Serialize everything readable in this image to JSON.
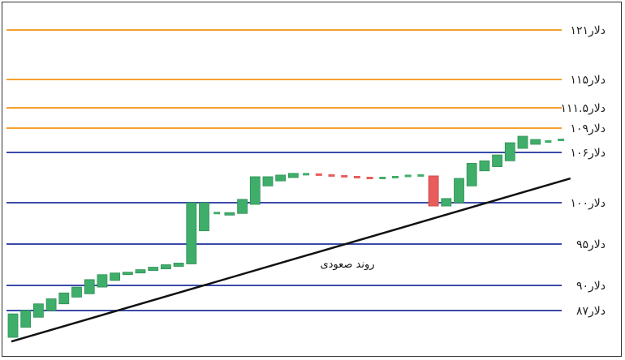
{
  "chart_data": {
    "type": "candlestick",
    "title": "",
    "xlabel": "",
    "ylabel": "",
    "grid": false,
    "levels": [
      {
        "value": 121,
        "label": "۱۲۱دلار",
        "color": "#f5a030"
      },
      {
        "value": 115,
        "label": "۱۱۵دلار",
        "color": "#f5a030"
      },
      {
        "value": 111.5,
        "label": "۱۱۱.۵دلار",
        "color": "#f5a030"
      },
      {
        "value": 109,
        "label": "۱۰۹دلار",
        "color": "#f5a030"
      },
      {
        "value": 106,
        "label": "۱۰۶دلار",
        "color": "#3a4aa8"
      },
      {
        "value": 100,
        "label": "۱۰۰دلار",
        "color": "#3a4aa8"
      },
      {
        "value": 95,
        "label": "۹۵دلار",
        "color": "#3a4aa8"
      },
      {
        "value": 90,
        "label": "۹۰دلار",
        "color": "#3a4aa8"
      },
      {
        "value": 87,
        "label": "۸۷دلار",
        "color": "#3a4aa8"
      }
    ],
    "trendline": {
      "label": "روند صعودی",
      "color": "#111111",
      "start": {
        "index": 0,
        "value": 83.3
      },
      "end": {
        "index": 44,
        "value": 102.9
      }
    },
    "candles": [
      {
        "open": 83.8,
        "close": 86.6,
        "color": "green"
      },
      {
        "open": 85.0,
        "close": 87.0,
        "color": "green"
      },
      {
        "open": 86.2,
        "close": 87.8,
        "color": "green"
      },
      {
        "open": 87.0,
        "close": 88.4,
        "color": "green"
      },
      {
        "open": 87.8,
        "close": 89.1,
        "color": "green"
      },
      {
        "open": 88.6,
        "close": 89.8,
        "color": "green"
      },
      {
        "open": 89.0,
        "close": 90.7,
        "color": "green"
      },
      {
        "open": 89.8,
        "close": 91.3,
        "color": "green"
      },
      {
        "open": 90.6,
        "close": 91.5,
        "color": "green"
      },
      {
        "open": 91.3,
        "close": 91.6,
        "color": "green"
      },
      {
        "open": 91.5,
        "close": 91.9,
        "color": "green"
      },
      {
        "open": 91.8,
        "close": 92.2,
        "color": "green"
      },
      {
        "open": 92.0,
        "close": 92.5,
        "color": "green"
      },
      {
        "open": 92.3,
        "close": 92.7,
        "color": "green"
      },
      {
        "open": 92.6,
        "close": 100.0,
        "color": "green"
      },
      {
        "open": 96.6,
        "close": 100.0,
        "color": "green"
      },
      {
        "open": 98.7,
        "close": 98.8,
        "color": "green"
      },
      {
        "open": 98.5,
        "close": 98.8,
        "color": "green"
      },
      {
        "open": 98.7,
        "close": 100.4,
        "color": "green"
      },
      {
        "open": 99.8,
        "close": 103.1,
        "color": "green"
      },
      {
        "open": 102.0,
        "close": 103.1,
        "color": "green"
      },
      {
        "open": 102.6,
        "close": 103.3,
        "color": "green"
      },
      {
        "open": 103.0,
        "close": 103.5,
        "color": "green"
      },
      {
        "open": 103.3,
        "close": 103.5,
        "color": "green"
      },
      {
        "open": 103.3,
        "close": 103.4,
        "color": "red"
      },
      {
        "open": 103.3,
        "close": 103.2,
        "color": "red"
      },
      {
        "open": 103.2,
        "close": 103.1,
        "color": "red"
      },
      {
        "open": 103.1,
        "close": 103.0,
        "color": "red"
      },
      {
        "open": 103.0,
        "close": 102.9,
        "color": "red"
      },
      {
        "open": 102.9,
        "close": 103.0,
        "color": "green"
      },
      {
        "open": 103.0,
        "close": 103.1,
        "color": "green"
      },
      {
        "open": 103.1,
        "close": 103.3,
        "color": "green"
      },
      {
        "open": 103.3,
        "close": 103.2,
        "color": "green"
      },
      {
        "open": 103.2,
        "close": 99.6,
        "color": "red"
      },
      {
        "open": 99.6,
        "close": 100.5,
        "color": "green"
      },
      {
        "open": 100.0,
        "close": 102.9,
        "color": "green"
      },
      {
        "open": 102.0,
        "close": 104.7,
        "color": "green"
      },
      {
        "open": 103.8,
        "close": 105.0,
        "color": "green"
      },
      {
        "open": 104.3,
        "close": 105.7,
        "color": "green"
      },
      {
        "open": 105.0,
        "close": 107.2,
        "color": "green"
      },
      {
        "open": 106.5,
        "close": 108.0,
        "color": "green"
      },
      {
        "open": 107.0,
        "close": 107.6,
        "color": "green"
      },
      {
        "open": 107.3,
        "close": 107.4,
        "color": "green"
      },
      {
        "open": 107.4,
        "close": 107.7,
        "color": "green"
      }
    ]
  }
}
